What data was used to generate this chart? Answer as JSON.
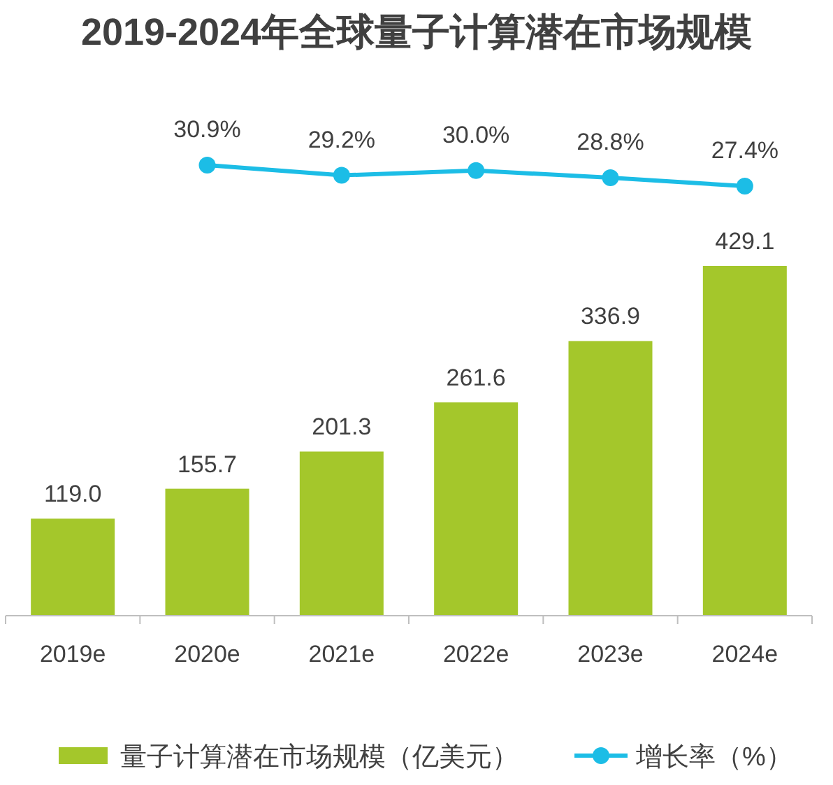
{
  "chart_data": [
    {
      "type": "bar",
      "categories": [
        "2019e",
        "2020e",
        "2021e",
        "2022e",
        "2023e",
        "2024e"
      ],
      "series": [
        {
          "name": "量子计算潜在市场规模（亿美元）",
          "color": "#a4c72b",
          "values": [
            119.0,
            155.7,
            201.3,
            261.6,
            336.9,
            429.1
          ],
          "value_labels": [
            "119.0",
            "155.7",
            "201.3",
            "261.6",
            "336.9",
            "429.1"
          ]
        }
      ],
      "tick_labels": "x",
      "legend": "bottom"
    },
    {
      "type": "line",
      "title": "2019-2024年全球量子计算潜在市场规模",
      "categories": [
        null,
        null,
        null,
        null,
        null,
        null
      ],
      "series": [
        {
          "name": "增长率（%）",
          "color": "#1cbde6",
          "values": [
            null,
            30.9,
            29.2,
            30.0,
            28.8,
            27.4
          ],
          "value_labels": [
            null,
            "30.9%",
            "29.2%",
            "30.0%",
            "28.8%",
            "27.4%"
          ]
        }
      ],
      "marker": "circle",
      "tick_labels": false,
      "legend": "bottom"
    }
  ]
}
